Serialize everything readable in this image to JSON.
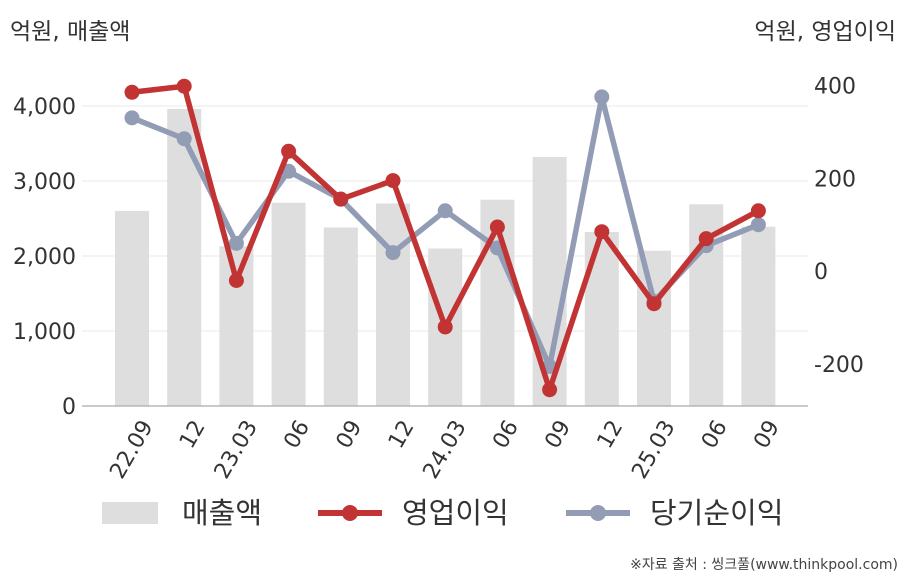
{
  "chart_data": {
    "type": "bar",
    "y_left_label": "억원, 매출액",
    "y_right_label": "억원, 영업이익",
    "categories": [
      "22.09",
      "12",
      "23.03",
      "06",
      "09",
      "12",
      "24.03",
      "06",
      "09",
      "12",
      "25.03",
      "06",
      "09"
    ],
    "y_left_ticks": [
      "0",
      "1,000",
      "2,000",
      "3,000",
      "4,000"
    ],
    "y_right_ticks": [
      "-200",
      "0",
      "200",
      "400"
    ],
    "y_left_lim": [
      0,
      4400
    ],
    "y_right_lim": [
      -290,
      420
    ],
    "grid": true,
    "legend_position": "bottom",
    "series": [
      {
        "name": "매출액",
        "type": "bar",
        "axis": "left",
        "color": "#dedede",
        "values": [
          2600,
          3960,
          2130,
          2710,
          2380,
          2700,
          2100,
          2750,
          3320,
          2320,
          2070,
          2690,
          2390
        ]
      },
      {
        "name": "영업이익",
        "type": "line",
        "axis": "right",
        "color": "#c23434",
        "values": [
          385,
          398,
          -20,
          258,
          155,
          195,
          -120,
          95,
          -255,
          85,
          -70,
          70,
          130
        ]
      },
      {
        "name": "당기순이익",
        "type": "line",
        "axis": "right",
        "color": "#929db5",
        "values": [
          330,
          285,
          60,
          215,
          155,
          40,
          130,
          50,
          -205,
          375,
          -65,
          55,
          100
        ]
      }
    ]
  },
  "source": "※자료 출처 : 씽크풀(www.thinkpool.com)"
}
